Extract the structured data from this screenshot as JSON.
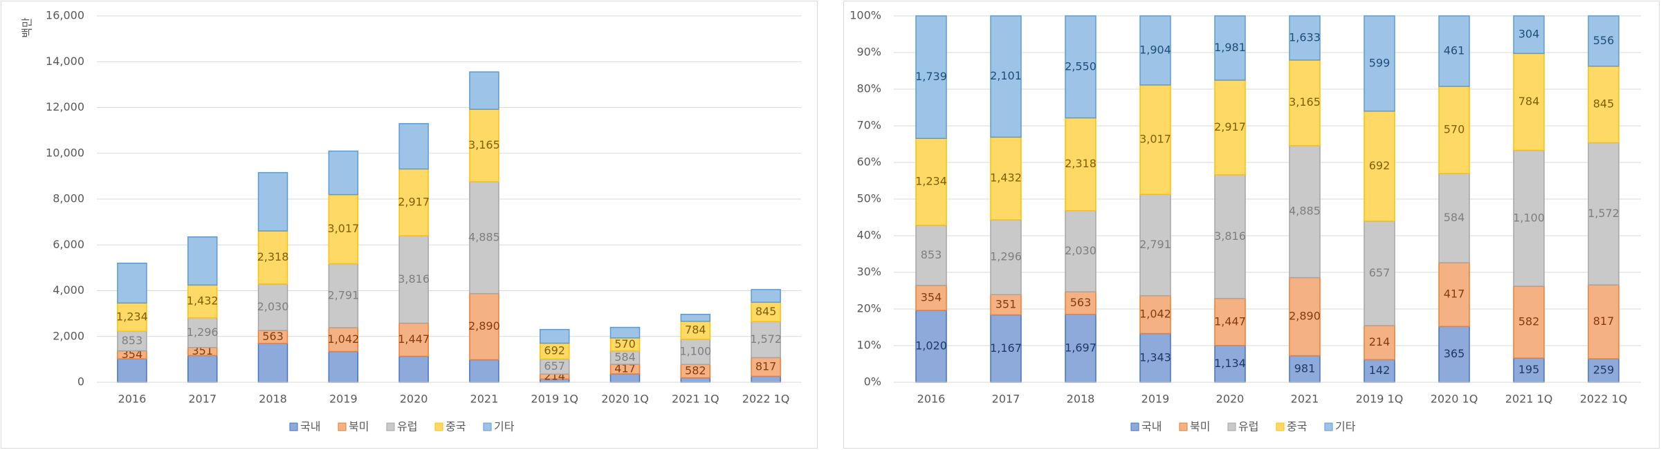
{
  "chart_data": [
    {
      "type": "bar",
      "stacked": true,
      "normalize": false,
      "y_label": "백만",
      "categories": [
        "2016",
        "2017",
        "2018",
        "2019",
        "2020",
        "2021",
        "2019 1Q",
        "2020 1Q",
        "2021 1Q",
        "2022 1Q"
      ],
      "series": [
        {
          "name": "국내",
          "color": "#8eaadb",
          "values": [
            1020,
            1167,
            1697,
            1343,
            1134,
            981,
            142,
            365,
            195,
            259
          ]
        },
        {
          "name": "북미",
          "color": "#f4b183",
          "values": [
            354,
            351,
            563,
            1042,
            1447,
            2890,
            214,
            417,
            582,
            817
          ],
          "value_labels": [
            "354",
            "351",
            "563",
            "1,042",
            "1,447",
            "2,890",
            "214",
            "417",
            "582",
            "817"
          ]
        },
        {
          "name": "유럽",
          "color": "#c9c9c9",
          "values": [
            853,
            1296,
            2030,
            2791,
            3816,
            4885,
            657,
            584,
            1100,
            1572
          ],
          "value_labels": [
            "853",
            "1,296",
            "2,030",
            "2,791",
            "3,816",
            "4,885",
            "657",
            "584",
            "1,100",
            "1,572"
          ]
        },
        {
          "name": "중국",
          "color": "#ffd966",
          "values": [
            1234,
            1432,
            2318,
            3017,
            2917,
            3165,
            692,
            570,
            784,
            845
          ],
          "value_labels": [
            "1,234",
            "1,432",
            "2,318",
            "3,017",
            "2,917",
            "3,165",
            "692",
            "570",
            "784",
            "845"
          ]
        },
        {
          "name": "기타",
          "color": "#9dc3e6",
          "values": [
            1739,
            2101,
            2550,
            1904,
            1981,
            1633,
            599,
            461,
            304,
            556
          ]
        }
      ],
      "ylim": [
        0,
        16000
      ],
      "yticks": [
        0,
        {
          "value": 2000,
          "label": "2,000"
        },
        {
          "value": 4000,
          "label": "4,000"
        },
        {
          "value": 6000,
          "label": "6,000"
        },
        {
          "value": 8000,
          "label": "8,000"
        },
        {
          "value": 10000,
          "label": "10,000"
        },
        {
          "value": 12000,
          "label": "12,000"
        },
        {
          "value": 14000,
          "label": "14,000"
        },
        {
          "value": 16000,
          "label": "16,000"
        }
      ],
      "grid": true,
      "legend": "bottom"
    },
    {
      "type": "bar",
      "stacked": true,
      "normalize": true,
      "categories": [
        "2016",
        "2017",
        "2018",
        "2019",
        "2020",
        "2021",
        "2019 1Q",
        "2020 1Q",
        "2021 1Q",
        "2022 1Q"
      ],
      "series": [
        {
          "name": "국내",
          "color": "#8eaadb",
          "values": [
            1020,
            1167,
            1697,
            1343,
            1134,
            981,
            142,
            365,
            195,
            259
          ],
          "value_labels": [
            "1,020",
            "1,167",
            "1,697",
            "1,343",
            "1,134",
            "981",
            "142",
            "365",
            "195",
            "259"
          ]
        },
        {
          "name": "북미",
          "color": "#f4b183",
          "values": [
            354,
            351,
            563,
            1042,
            1447,
            2890,
            214,
            417,
            582,
            817
          ],
          "value_labels": [
            "354",
            "351",
            "563",
            "1,042",
            "1,447",
            "2,890",
            "214",
            "417",
            "582",
            "817"
          ]
        },
        {
          "name": "유럽",
          "color": "#c9c9c9",
          "values": [
            853,
            1296,
            2030,
            2791,
            3816,
            4885,
            657,
            584,
            1100,
            1572
          ],
          "value_labels": [
            "853",
            "1,296",
            "2,030",
            "2,791",
            "3,816",
            "4,885",
            "657",
            "584",
            "1,100",
            "1,572"
          ]
        },
        {
          "name": "중국",
          "color": "#ffd966",
          "values": [
            1234,
            1432,
            2318,
            3017,
            2917,
            3165,
            692,
            570,
            784,
            845
          ],
          "value_labels": [
            "1,234",
            "1,432",
            "2,318",
            "3,017",
            "2,917",
            "3,165",
            "692",
            "570",
            "784",
            "845"
          ]
        },
        {
          "name": "기타",
          "color": "#9dc3e6",
          "values": [
            1739,
            2101,
            2550,
            1904,
            1981,
            1633,
            599,
            461,
            304,
            556
          ],
          "value_labels": [
            "1,739",
            "2,101",
            "2,550",
            "1,904",
            "1,981",
            "1,633",
            "599",
            "461",
            "304",
            "556"
          ]
        }
      ],
      "ylim": [
        0,
        100
      ],
      "yticks": [
        {
          "value": 0,
          "label": "0%"
        },
        {
          "value": 10,
          "label": "10%"
        },
        {
          "value": 20,
          "label": "20%"
        },
        {
          "value": 30,
          "label": "30%"
        },
        {
          "value": 40,
          "label": "40%"
        },
        {
          "value": 50,
          "label": "50%"
        },
        {
          "value": 60,
          "label": "60%"
        },
        {
          "value": 70,
          "label": "70%"
        },
        {
          "value": 80,
          "label": "80%"
        },
        {
          "value": 90,
          "label": "90%"
        },
        {
          "value": 100,
          "label": "100%"
        }
      ],
      "grid": true,
      "legend": "bottom"
    }
  ]
}
